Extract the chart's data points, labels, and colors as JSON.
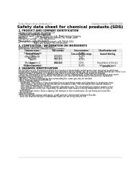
{
  "title": "Safety data sheet for chemical products (SDS)",
  "header_left": "Product Name: Lithium Ion Battery Cell",
  "header_right": "Substance number: SBN-049-0001B\nEstablishment / Revision: Dec.7.2018",
  "section1_title": "1. PRODUCT AND COMPANY IDENTIFICATION",
  "section1_lines": [
    "・Product name: Lithium Ion Battery Cell",
    "・Product code: Cylindrical-type cell",
    "   SN18650U, SN18650L, SN18650A",
    "・Company name:    Sanyo Electric Co., Ltd., Mobile Energy Company",
    "・Address:            2001. Kamikamachi, Sumoto-City, Hyogo, Japan",
    "・Telephone number:   +81-799-26-4111",
    "・Fax number:   +81-799-26-4120",
    "・Emergency telephone number (daytime): +81-799-26-3562",
    "                         (Night and holiday) +81-799-26-4101"
  ],
  "section2_title": "2. COMPOSITION / INFORMATION ON INGREDIENTS",
  "section2_intro": "・Substance or preparation: Preparation",
  "section2_sub": "・Information about the chemical nature of product:",
  "table_col_names": [
    "Common name /\nSeveral name",
    "CAS number",
    "Concentration /\nConcentration range",
    "Classification and\nhazard labeling"
  ],
  "table_rows": [
    [
      "Lithium cobalt oxide\n(LiMn2O4/LiMnO4)",
      "-",
      "30-40%",
      "-"
    ],
    [
      "Iron",
      "7439-89-6",
      "15-25%",
      "-"
    ],
    [
      "Aluminum",
      "7429-90-5",
      "2-8%",
      "-"
    ],
    [
      "Graphite\n(Mixed graphite-1)\n(All-Mixed graphite-1)",
      "7782-42-5\n7782-42-5",
      "10-25%",
      "-"
    ],
    [
      "Copper",
      "7440-50-8",
      "5-15%",
      "Sensitization of the skin\ngroup No.2"
    ],
    [
      "Organic electrolyte",
      "-",
      "10-20%",
      "Inflammable liquid"
    ]
  ],
  "section3_title": "3. HAZARDS IDENTIFICATION",
  "section3_text": [
    "For the battery cell, chemical materials are stored in a hermetically sealed metal case, designed to withstand",
    "temperature changes and internal-pressure variations during normal use. As a result, during normal use, there is no",
    "physical danger of ignition or explosion and there is no danger of hazardous materials leakage.",
    "  However, if exposed to a fire, added mechanical shocks, decomposed, under electric short-circuit may cause.",
    "the gas release exhaust be operated. The battery cell case will be breached of fire-ponents, hazardous",
    "materials may be released.",
    "  Moreover, if heated strongly by the surrounding fire, some gas may be emitted.",
    "",
    "・Most important hazard and effects:",
    "  Human health effects:",
    "    Inhalation: The release of the electrolyte has an anesthesia action and stimulates in respiratory tract.",
    "    Skin contact: The release of the electrolyte stimulates a skin. The electrolyte skin contact causes a",
    "    sore and stimulation on the skin.",
    "    Eye contact: The release of the electrolyte stimulates eyes. The electrolyte eye contact causes a sore",
    "    and stimulation on the eye. Especially, a substance that causes a strong inflammation of the eyes is",
    "    contained.",
    "  Environmental effects: Since a battery cell remains in the environment, do not throw out it into the",
    "  environment.",
    "",
    "・Specific hazards:",
    "  If the electrolyte contacts with water, it will generate detrimental hydrogen fluoride.",
    "  Since the lead electrolyte is inflammable liquid, do not bring close to fire."
  ],
  "bg_color": "#ffffff",
  "text_color": "#000000",
  "gray_text": "#666666",
  "header_line_color": "#aaaaaa",
  "table_line_color": "#aaaaaa"
}
